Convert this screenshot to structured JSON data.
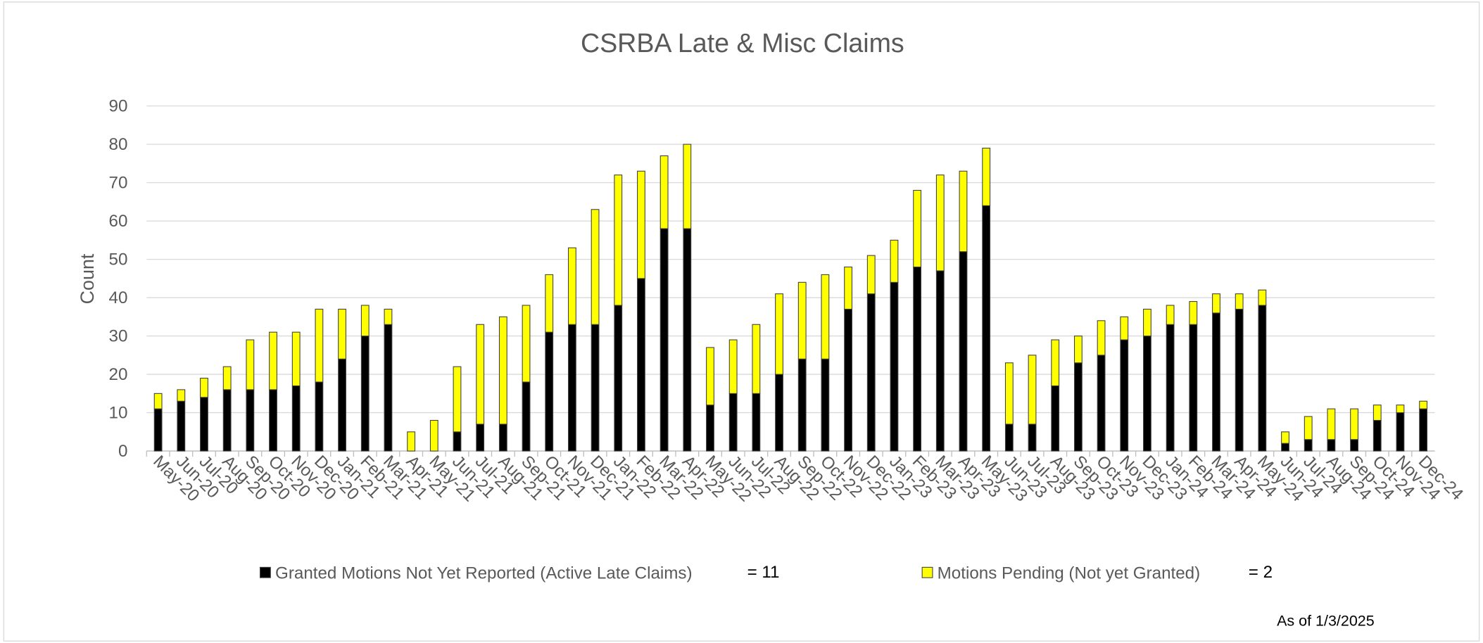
{
  "chart_data": {
    "type": "stacked_bar",
    "title": "CSRBA Late & Misc Claims",
    "y_label": "Count",
    "categories": [
      "May-20",
      "Jun-20",
      "Jul-20",
      "Aug-20",
      "Sep-20",
      "Oct-20",
      "Nov-20",
      "Dec-20",
      "Jan-21",
      "Feb-21",
      "Mar-21",
      "Apr-21",
      "May-21",
      "Jun-21",
      "Jul-21",
      "Aug-21",
      "Sep-21",
      "Oct-21",
      "Nov-21",
      "Dec-21",
      "Jan-22",
      "Feb-22",
      "Mar-22",
      "Apr-22",
      "May-22",
      "Jun-22",
      "Jul-22",
      "Aug-22",
      "Sep-22",
      "Oct-22",
      "Nov-22",
      "Dec-22",
      "Jan-23",
      "Feb-23",
      "Mar-23",
      "Apr-23",
      "May-23",
      "Jun-23",
      "Jul-23",
      "Aug-23",
      "Sep-23",
      "Oct-23",
      "Nov-23",
      "Dec-23",
      "Jan-24",
      "Feb-24",
      "Mar-24",
      "Apr-24",
      "May-24",
      "Jun-24",
      "Jul-24",
      "Aug-24",
      "Sep-24",
      "Oct-24",
      "Nov-24",
      "Dec-24"
    ],
    "series": [
      {
        "name": "Granted Motions Not Yet Reported (Active Late Claims)",
        "color": "#000000",
        "values": [
          11,
          13,
          14,
          16,
          16,
          16,
          17,
          18,
          24,
          30,
          33,
          0,
          0,
          5,
          7,
          7,
          18,
          31,
          33,
          33,
          38,
          45,
          58,
          58,
          12,
          15,
          15,
          20,
          24,
          24,
          37,
          41,
          44,
          48,
          47,
          52,
          64,
          7,
          7,
          17,
          23,
          25,
          29,
          30,
          33,
          33,
          36,
          37,
          38,
          2,
          3,
          3,
          3,
          8,
          10,
          11
        ]
      },
      {
        "name": "Motions Pending  (Not yet Granted)",
        "color": "#ffff00",
        "values": [
          4,
          3,
          5,
          6,
          13,
          15,
          14,
          19,
          13,
          8,
          4,
          5,
          8,
          17,
          26,
          28,
          20,
          15,
          20,
          30,
          34,
          28,
          19,
          22,
          15,
          14,
          18,
          21,
          20,
          22,
          11,
          10,
          11,
          20,
          25,
          21,
          15,
          16,
          18,
          12,
          7,
          9,
          6,
          7,
          5,
          6,
          5,
          4,
          4,
          3,
          6,
          8,
          8,
          4,
          2,
          2
        ]
      }
    ],
    "legend_annotations": [
      "= 11",
      "= 2"
    ],
    "footnote": "As of 1/3/2025",
    "ylim": [
      0,
      90
    ],
    "yticks": [
      0,
      10,
      20,
      30,
      40,
      50,
      60,
      70,
      80,
      90
    ],
    "grid": true
  }
}
